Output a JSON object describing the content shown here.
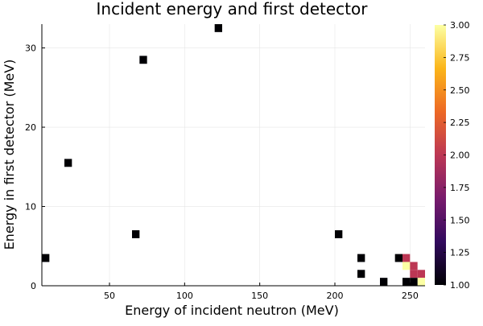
{
  "chart_data": {
    "type": "heatmap",
    "title": "Incident energy and first detector",
    "xlabel": "Energy of incident neutron (MeV)",
    "ylabel": "Energy in first detector (MeV)",
    "xlim": [
      5,
      260
    ],
    "ylim": [
      0,
      33
    ],
    "x_ticks": [
      50,
      100,
      150,
      200,
      250
    ],
    "y_ticks": [
      0,
      10,
      20,
      30
    ],
    "bin_size": [
      5,
      1
    ],
    "grid": true,
    "colorbar": {
      "range": [
        1.0,
        3.0
      ],
      "ticks": [
        "1.00",
        "1.25",
        "1.50",
        "1.75",
        "2.00",
        "2.25",
        "2.50",
        "2.75",
        "3.00"
      ],
      "colormap": [
        "#000004",
        "#320a5e",
        "#781b6c",
        "#bc3754",
        "#ed6925",
        "#fbb61a",
        "#fcffa4"
      ]
    },
    "points": [
      {
        "x": 7.5,
        "y": 3.5,
        "value": 1
      },
      {
        "x": 22.5,
        "y": 15.5,
        "value": 1
      },
      {
        "x": 67.5,
        "y": 6.5,
        "value": 1
      },
      {
        "x": 72.5,
        "y": 28.5,
        "value": 1
      },
      {
        "x": 122.5,
        "y": 32.5,
        "value": 1
      },
      {
        "x": 202.5,
        "y": 6.5,
        "value": 1
      },
      {
        "x": 217.5,
        "y": 3.5,
        "value": 1
      },
      {
        "x": 217.5,
        "y": 1.5,
        "value": 1
      },
      {
        "x": 232.5,
        "y": 0.5,
        "value": 1
      },
      {
        "x": 242.5,
        "y": 3.5,
        "value": 1
      },
      {
        "x": 247.5,
        "y": 3.5,
        "value": 2
      },
      {
        "x": 247.5,
        "y": 2.5,
        "value": 3
      },
      {
        "x": 252.5,
        "y": 2.5,
        "value": 2
      },
      {
        "x": 252.5,
        "y": 1.5,
        "value": 2
      },
      {
        "x": 257.5,
        "y": 1.5,
        "value": 2
      },
      {
        "x": 257.5,
        "y": 0.5,
        "value": 3
      },
      {
        "x": 247.5,
        "y": 0.5,
        "value": 1
      },
      {
        "x": 252.5,
        "y": 0.5,
        "value": 1
      }
    ]
  }
}
